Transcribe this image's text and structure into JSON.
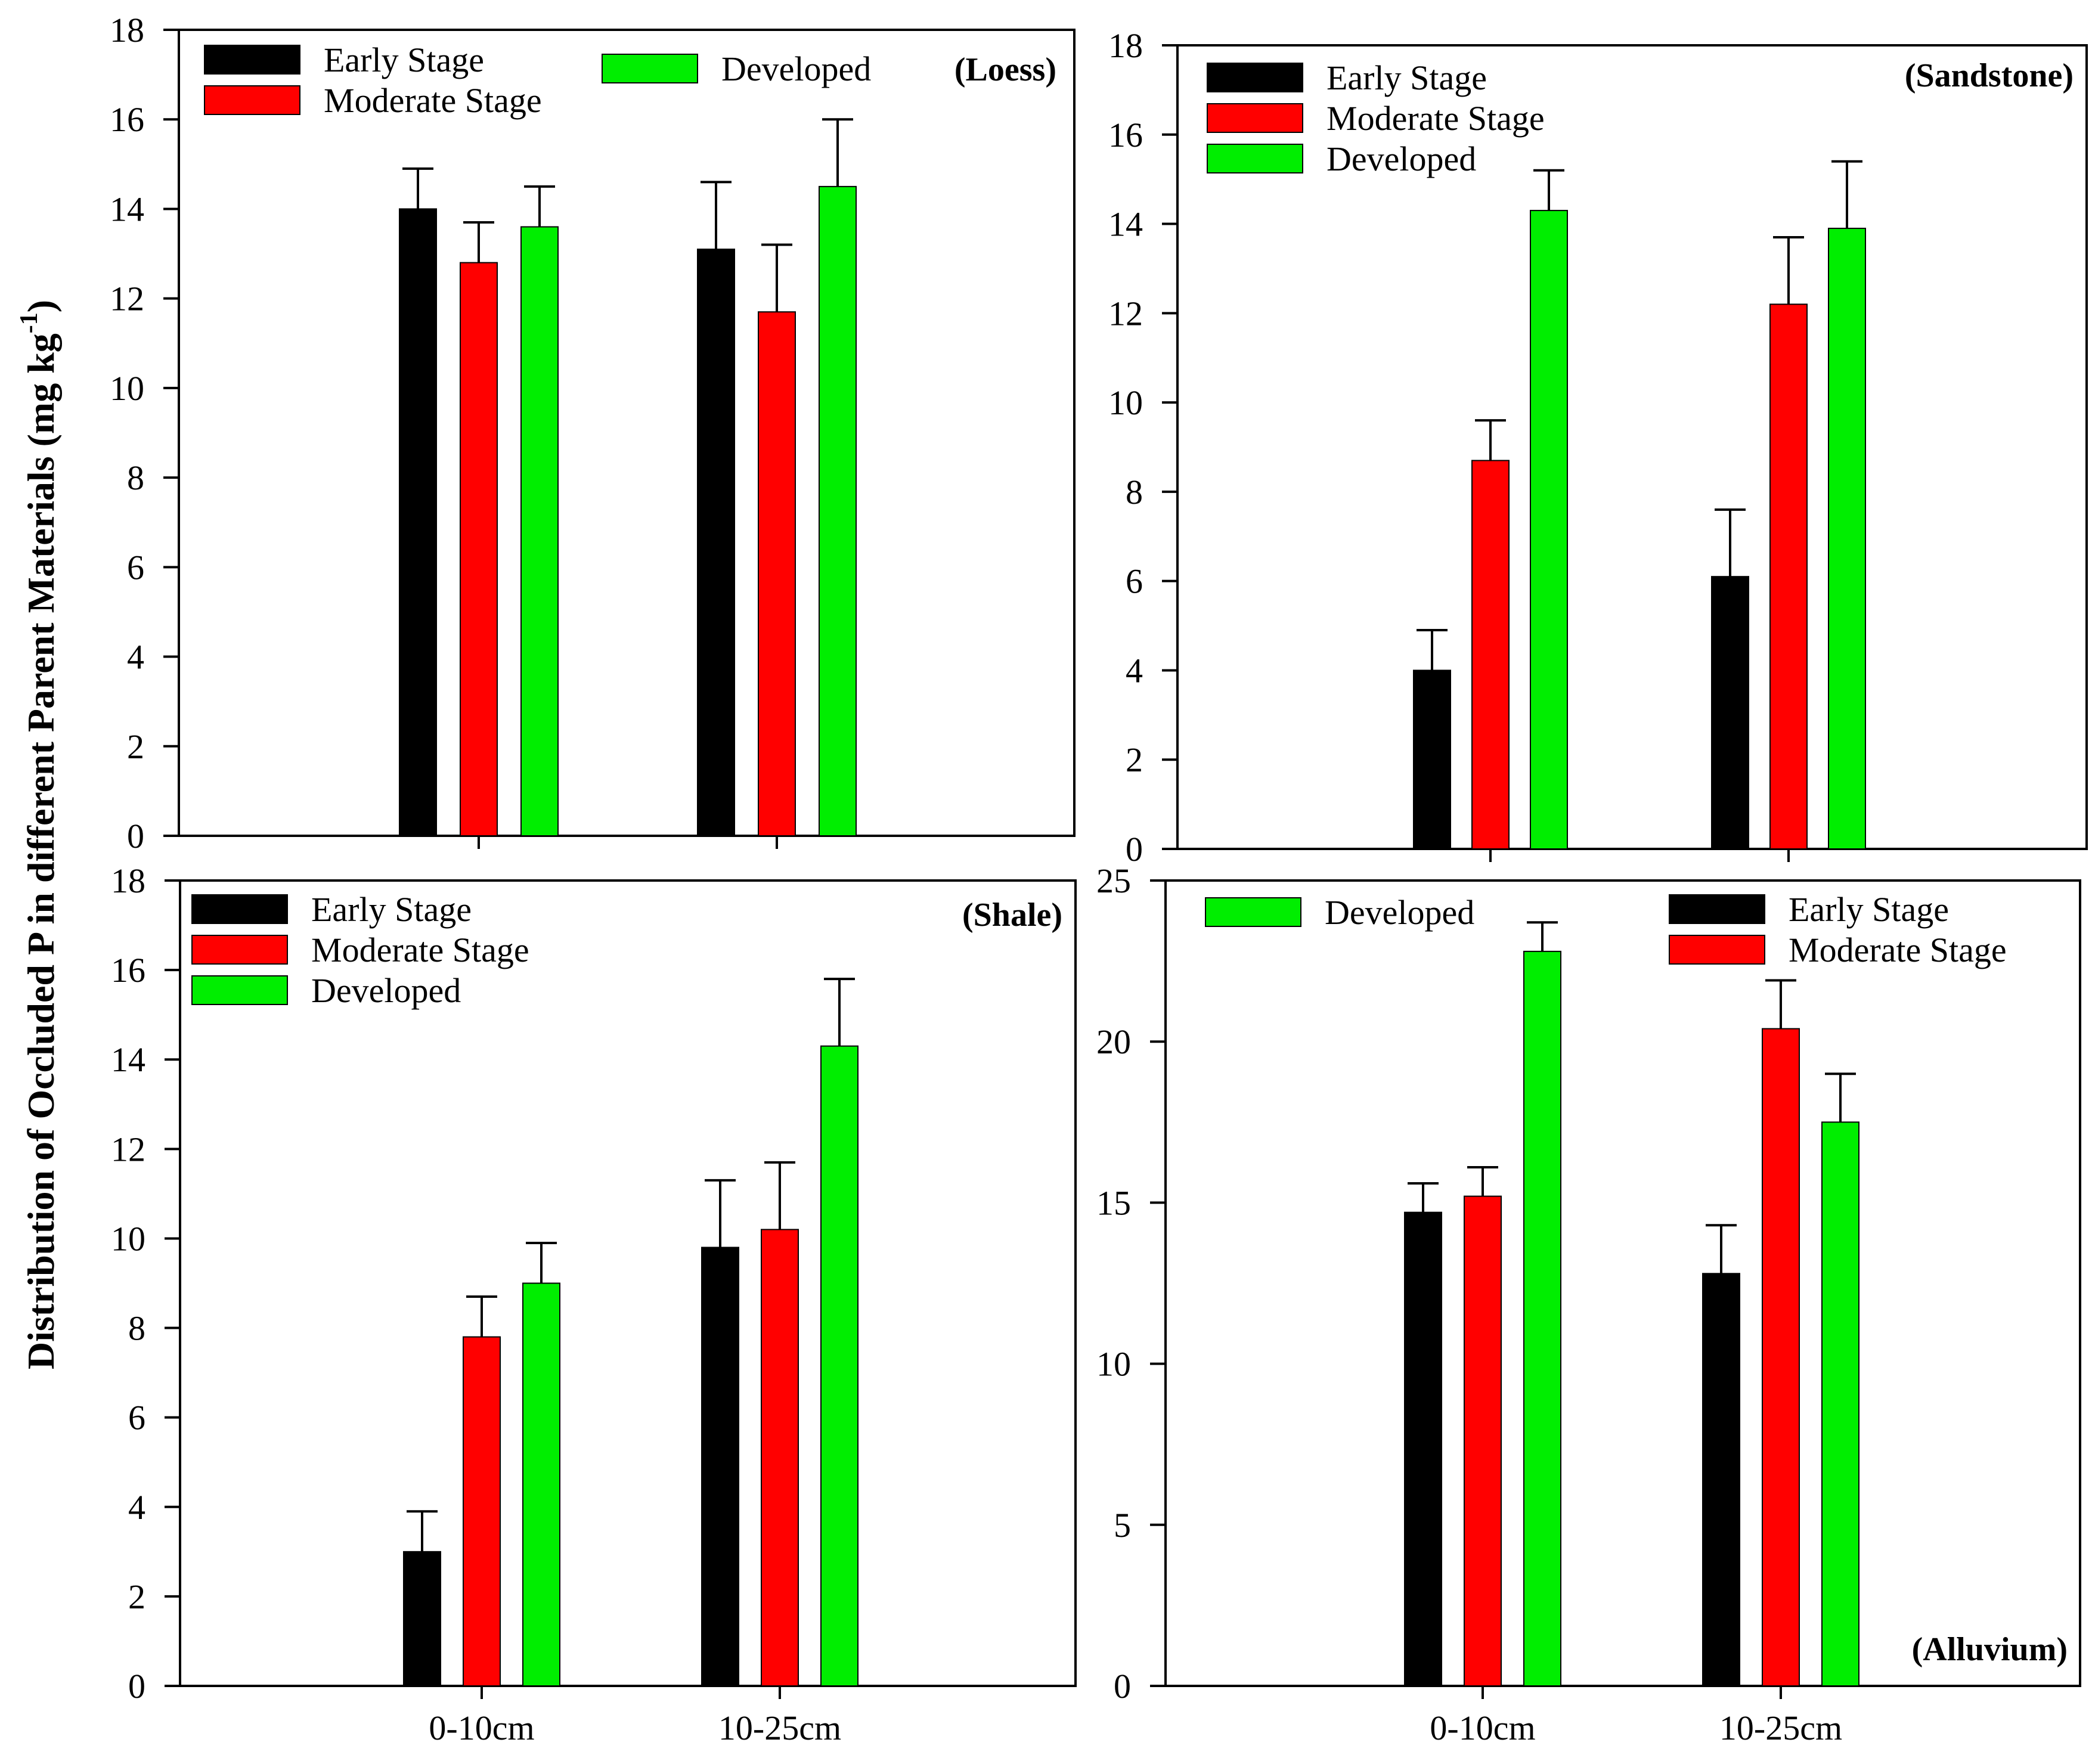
{
  "chart_data": [
    {
      "type": "bar",
      "title": "(Loess)",
      "categories": [
        "0-10cm",
        "10-25cm"
      ],
      "ylim": [
        0,
        18
      ],
      "yticks": [
        0,
        2,
        4,
        6,
        8,
        10,
        12,
        14,
        16,
        18
      ],
      "show_category_labels": false,
      "legend_layout": "top-left-two-columns",
      "legend": [
        "Early Stage",
        "Moderate Stage",
        "Developed"
      ],
      "series": [
        {
          "name": "Early Stage",
          "color": "#000000",
          "values": [
            14.0,
            13.1
          ],
          "errors": [
            0.9,
            1.5
          ]
        },
        {
          "name": "Moderate Stage",
          "color": "#ff0000",
          "values": [
            12.8,
            11.7
          ],
          "errors": [
            0.9,
            1.5
          ]
        },
        {
          "name": "Developed",
          "color": "#00ee00",
          "values": [
            13.6,
            14.5
          ],
          "errors": [
            0.9,
            1.5
          ]
        }
      ]
    },
    {
      "type": "bar",
      "title": "(Sandstone)",
      "categories": [
        "0-10cm",
        "10-25cm"
      ],
      "ylim": [
        0,
        18
      ],
      "yticks": [
        0,
        2,
        4,
        6,
        8,
        10,
        12,
        14,
        16,
        18
      ],
      "show_category_labels": false,
      "legend_layout": "top-left-stacked",
      "legend": [
        "Early Stage",
        "Moderate Stage",
        "Developed"
      ],
      "series": [
        {
          "name": "Early Stage",
          "color": "#000000",
          "values": [
            4.0,
            6.1
          ],
          "errors": [
            0.9,
            1.5
          ]
        },
        {
          "name": "Moderate Stage",
          "color": "#ff0000",
          "values": [
            8.7,
            12.2
          ],
          "errors": [
            0.9,
            1.5
          ]
        },
        {
          "name": "Developed",
          "color": "#00ee00",
          "values": [
            14.3,
            13.9
          ],
          "errors": [
            0.9,
            1.5
          ]
        }
      ]
    },
    {
      "type": "bar",
      "title": "(Shale)",
      "categories": [
        "0-10cm",
        "10-25cm"
      ],
      "ylim": [
        0,
        18
      ],
      "yticks": [
        0,
        2,
        4,
        6,
        8,
        10,
        12,
        14,
        16,
        18
      ],
      "show_category_labels": true,
      "legend_layout": "top-left-stacked",
      "legend": [
        "Early Stage",
        "Moderate Stage",
        "Developed"
      ],
      "series": [
        {
          "name": "Early Stage",
          "color": "#000000",
          "values": [
            3.0,
            9.8
          ],
          "errors": [
            0.9,
            1.5
          ]
        },
        {
          "name": "Moderate Stage",
          "color": "#ff0000",
          "values": [
            7.8,
            10.2
          ],
          "errors": [
            0.9,
            1.5
          ]
        },
        {
          "name": "Developed",
          "color": "#00ee00",
          "values": [
            9.0,
            14.3
          ],
          "errors": [
            0.9,
            1.5
          ]
        }
      ]
    },
    {
      "type": "bar",
      "title": "(Alluvium)",
      "categories": [
        "0-10cm",
        "10-25cm"
      ],
      "ylim": [
        0,
        25
      ],
      "yticks": [
        0,
        5,
        10,
        15,
        20,
        25
      ],
      "show_category_labels": true,
      "legend_layout": "split-developed-left",
      "legend": [
        "Developed",
        "Early Stage",
        "Moderate Stage"
      ],
      "series": [
        {
          "name": "Early Stage",
          "color": "#000000",
          "values": [
            14.7,
            12.8
          ],
          "errors": [
            0.9,
            1.5
          ]
        },
        {
          "name": "Moderate Stage",
          "color": "#ff0000",
          "values": [
            15.2,
            20.4
          ],
          "errors": [
            0.9,
            1.5
          ]
        },
        {
          "name": "Developed",
          "color": "#00ee00",
          "values": [
            22.8,
            17.5
          ],
          "errors": [
            0.9,
            1.5
          ]
        }
      ]
    }
  ],
  "shared_ylabel_prefix": "Distribution of Occluded P in different Parent Materials (mg kg",
  "shared_ylabel_superscript": "-1",
  "shared_ylabel_suffix": ")"
}
